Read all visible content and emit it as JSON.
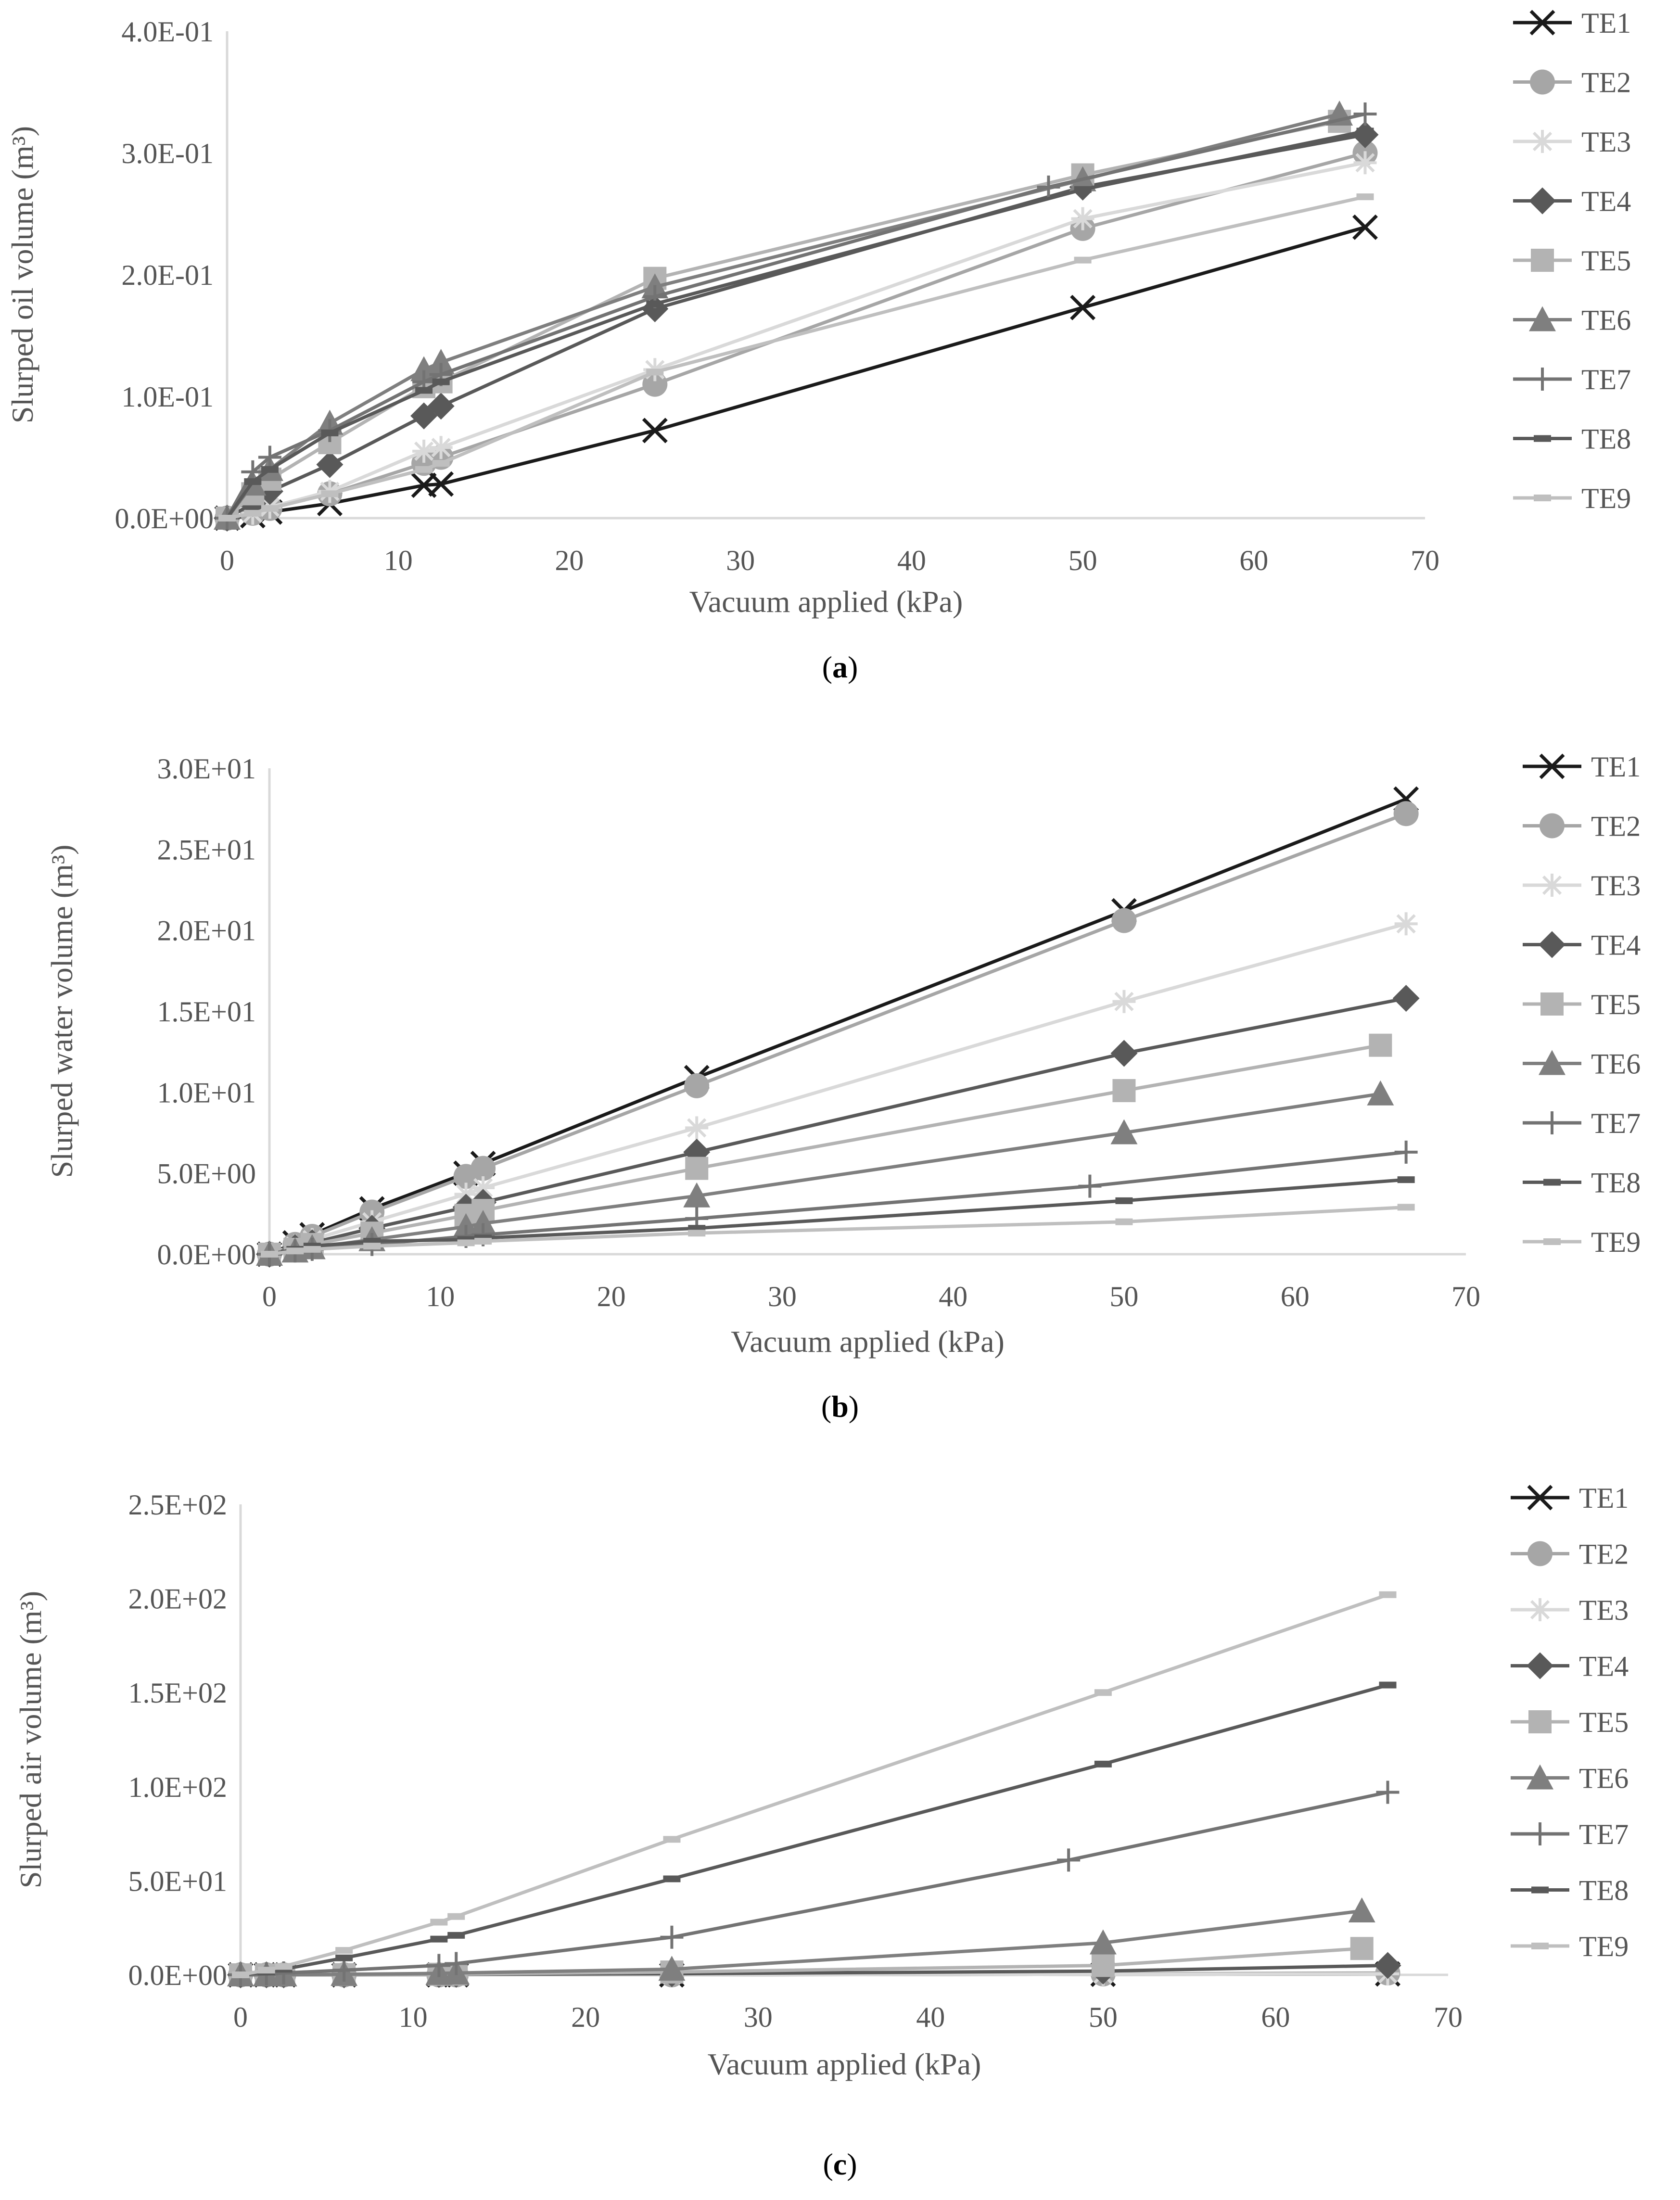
{
  "legend_entries": [
    "TE1",
    "TE2",
    "TE3",
    "TE4",
    "TE5",
    "TE6",
    "TE7",
    "TE8",
    "TE9"
  ],
  "series_style": [
    {
      "name": "TE1",
      "color": "#1a1a1a",
      "marker": "x"
    },
    {
      "name": "TE2",
      "color": "#a6a6a6",
      "marker": "circle"
    },
    {
      "name": "TE3",
      "color": "#d9d9d9",
      "marker": "asterisk"
    },
    {
      "name": "TE4",
      "color": "#595959",
      "marker": "diamond"
    },
    {
      "name": "TE5",
      "color": "#b3b3b3",
      "marker": "square"
    },
    {
      "name": "TE6",
      "color": "#7f7f7f",
      "marker": "triangle"
    },
    {
      "name": "TE7",
      "color": "#737373",
      "marker": "plus"
    },
    {
      "name": "TE8",
      "color": "#595959",
      "marker": "dash"
    },
    {
      "name": "TE9",
      "color": "#bfbfbf",
      "marker": "dash"
    }
  ],
  "chart_data": [
    {
      "type": "line",
      "caption": "a",
      "xlabel": "Vacuum applied (kPa)",
      "ylabel": "Slurped oil volume (m³)",
      "xlim": [
        0,
        70
      ],
      "ylim": [
        0,
        0.4
      ],
      "xticks": [
        0,
        10,
        20,
        30,
        40,
        50,
        60,
        70
      ],
      "xtick_labels": [
        "0",
        "10",
        "20",
        "30",
        "40",
        "50",
        "60",
        "70"
      ],
      "yticks": [
        0,
        0.1,
        0.2,
        0.3,
        0.4
      ],
      "ytick_labels": [
        "0.0E+00",
        "1.0E-01",
        "2.0E-01",
        "3.0E-01",
        "4.0E-01"
      ],
      "series": [
        {
          "name": "TE1",
          "x": [
            0,
            1.5,
            2.5,
            6,
            11.5,
            12.5,
            25,
            50,
            66.5
          ],
          "y": [
            0,
            0.002,
            0.005,
            0.012,
            0.027,
            0.028,
            0.072,
            0.173,
            0.239
          ]
        },
        {
          "name": "TE2",
          "x": [
            0,
            1.5,
            2.5,
            6,
            11.5,
            12.5,
            25,
            50,
            66.5
          ],
          "y": [
            0,
            0.004,
            0.008,
            0.02,
            0.045,
            0.05,
            0.11,
            0.238,
            0.3
          ]
        },
        {
          "name": "TE3",
          "x": [
            0,
            1.5,
            2.5,
            6,
            11.5,
            12.5,
            25,
            50,
            66.5
          ],
          "y": [
            0,
            0.004,
            0.009,
            0.022,
            0.055,
            0.058,
            0.122,
            0.246,
            0.292
          ]
        },
        {
          "name": "TE4",
          "x": [
            0,
            1.5,
            2.5,
            6,
            11.5,
            12.5,
            25,
            50,
            66.5
          ],
          "y": [
            0,
            0.012,
            0.022,
            0.044,
            0.084,
            0.092,
            0.172,
            0.272,
            0.315
          ]
        },
        {
          "name": "TE5",
          "x": [
            0,
            1.5,
            2.5,
            6,
            11.5,
            12.5,
            25,
            50,
            65
          ],
          "y": [
            0,
            0.02,
            0.032,
            0.062,
            0.108,
            0.112,
            0.197,
            0.282,
            0.326
          ]
        },
        {
          "name": "TE6",
          "x": [
            0,
            1.5,
            2.5,
            6,
            11.5,
            12.5,
            25,
            50,
            65
          ],
          "y": [
            0,
            0.028,
            0.04,
            0.078,
            0.122,
            0.128,
            0.19,
            0.278,
            0.332
          ]
        },
        {
          "name": "TE7",
          "x": [
            0,
            1.5,
            2.5,
            6,
            11.5,
            12.5,
            25,
            48,
            66.5
          ],
          "y": [
            0,
            0.038,
            0.05,
            0.072,
            0.112,
            0.118,
            0.182,
            0.272,
            0.332
          ]
        },
        {
          "name": "TE8",
          "x": [
            0,
            1.5,
            2.5,
            6,
            11.5,
            12.5,
            25,
            50,
            66.5
          ],
          "y": [
            0,
            0.03,
            0.04,
            0.07,
            0.105,
            0.112,
            0.176,
            0.27,
            0.318
          ]
        },
        {
          "name": "TE9",
          "x": [
            0,
            1.5,
            2.5,
            6,
            11.5,
            12.5,
            25,
            50,
            66.5
          ],
          "y": [
            0,
            0.004,
            0.008,
            0.02,
            0.04,
            0.045,
            0.12,
            0.212,
            0.264
          ]
        }
      ]
    },
    {
      "type": "line",
      "caption": "b",
      "xlabel": "Vacuum applied (kPa)",
      "ylabel": "Slurped water volume (m³)",
      "xlim": [
        0,
        70
      ],
      "ylim": [
        0,
        30
      ],
      "xticks": [
        0,
        10,
        20,
        30,
        40,
        50,
        60,
        70
      ],
      "xtick_labels": [
        "0",
        "10",
        "20",
        "30",
        "40",
        "50",
        "60",
        "70"
      ],
      "yticks": [
        0,
        5,
        10,
        15,
        20,
        25,
        30
      ],
      "ytick_labels": [
        "0.0E+00",
        "5.0E+00",
        "1.0E+01",
        "1.5E+01",
        "2.0E+01",
        "2.5E+01",
        "3.0E+01"
      ],
      "series": [
        {
          "name": "TE1",
          "x": [
            0,
            1.5,
            2.5,
            6,
            11.5,
            12.5,
            25,
            50,
            66.5
          ],
          "y": [
            0,
            0.7,
            1.2,
            2.8,
            5.0,
            5.6,
            10.9,
            21.2,
            28.1
          ]
        },
        {
          "name": "TE2",
          "x": [
            0,
            1.5,
            2.5,
            6,
            11.5,
            12.5,
            25,
            50,
            66.5
          ],
          "y": [
            0,
            0.6,
            1.1,
            2.6,
            4.8,
            5.3,
            10.4,
            20.6,
            27.2
          ]
        },
        {
          "name": "TE3",
          "x": [
            0,
            1.5,
            2.5,
            6,
            11.5,
            12.5,
            25,
            50,
            66.5
          ],
          "y": [
            0,
            0.5,
            0.9,
            2.0,
            3.7,
            4.1,
            7.8,
            15.6,
            20.4
          ]
        },
        {
          "name": "TE4",
          "x": [
            0,
            1.5,
            2.5,
            6,
            11.5,
            12.5,
            25,
            50,
            66.5
          ],
          "y": [
            0,
            0.4,
            0.7,
            1.6,
            2.9,
            3.2,
            6.3,
            12.4,
            15.8
          ]
        },
        {
          "name": "TE5",
          "x": [
            0,
            1.5,
            2.5,
            6,
            11.5,
            12.5,
            25,
            50,
            65
          ],
          "y": [
            0,
            0.3,
            0.6,
            1.3,
            2.4,
            2.7,
            5.3,
            10.1,
            12.9
          ]
        },
        {
          "name": "TE6",
          "x": [
            0,
            1.5,
            2.5,
            6,
            11.5,
            12.5,
            25,
            50,
            65
          ],
          "y": [
            0,
            0.2,
            0.4,
            0.9,
            1.7,
            1.9,
            3.6,
            7.5,
            9.9
          ]
        },
        {
          "name": "TE7",
          "x": [
            0,
            1.5,
            2.5,
            6,
            11.5,
            12.5,
            25,
            48,
            66.5
          ],
          "y": [
            0,
            0.2,
            0.3,
            0.6,
            1.1,
            1.2,
            2.2,
            4.2,
            6.3
          ]
        },
        {
          "name": "TE8",
          "x": [
            0,
            1.5,
            2.5,
            6,
            11.5,
            12.5,
            25,
            50,
            66.5
          ],
          "y": [
            0,
            0.3,
            0.5,
            0.8,
            0.9,
            1.0,
            1.6,
            3.3,
            4.6
          ]
        },
        {
          "name": "TE9",
          "x": [
            0,
            1.5,
            2.5,
            6,
            11.5,
            12.5,
            25,
            50,
            66.5
          ],
          "y": [
            0,
            0.2,
            0.3,
            0.5,
            0.7,
            0.8,
            1.3,
            2.0,
            2.9
          ]
        }
      ]
    },
    {
      "type": "line",
      "caption": "c",
      "xlabel": "Vacuum applied (kPa)",
      "ylabel": "Slurped air volume (m³)",
      "xlim": [
        0,
        70
      ],
      "ylim": [
        0,
        250
      ],
      "xticks": [
        0,
        10,
        20,
        30,
        40,
        50,
        60,
        70
      ],
      "xtick_labels": [
        "0",
        "10",
        "20",
        "30",
        "40",
        "50",
        "60",
        "70"
      ],
      "yticks": [
        0,
        50,
        100,
        150,
        200,
        250
      ],
      "ytick_labels": [
        "0.0E+00",
        "5.0E+01",
        "1.0E+02",
        "1.5E+02",
        "2.0E+02",
        "2.5E+02"
      ],
      "series": [
        {
          "name": "TE1",
          "x": [
            0,
            1.5,
            2.5,
            6,
            11.5,
            12.5,
            25,
            50,
            66.5
          ],
          "y": [
            0,
            0,
            0,
            0,
            0,
            0,
            0,
            0.3,
            0.5
          ]
        },
        {
          "name": "TE2",
          "x": [
            0,
            1.5,
            2.5,
            6,
            11.5,
            12.5,
            25,
            50,
            66.5
          ],
          "y": [
            0,
            0,
            0,
            0,
            0,
            0,
            0,
            0.5,
            1
          ]
        },
        {
          "name": "TE3",
          "x": [
            0,
            1.5,
            2.5,
            6,
            11.5,
            12.5,
            25,
            50,
            66.5
          ],
          "y": [
            0,
            0,
            0,
            0,
            0,
            0,
            0,
            0.3,
            0.5
          ]
        },
        {
          "name": "TE4",
          "x": [
            0,
            1.5,
            2.5,
            6,
            11.5,
            12.5,
            25,
            50,
            66.5
          ],
          "y": [
            0,
            0,
            0,
            0,
            0.2,
            0.3,
            0.6,
            2,
            5
          ]
        },
        {
          "name": "TE5",
          "x": [
            0,
            1.5,
            2.5,
            6,
            11.5,
            12.5,
            25,
            50,
            65
          ],
          "y": [
            0,
            0,
            0,
            0.1,
            0.3,
            0.4,
            1.5,
            5,
            14
          ]
        },
        {
          "name": "TE6",
          "x": [
            0,
            1.5,
            2.5,
            6,
            11.5,
            12.5,
            25,
            50,
            65
          ],
          "y": [
            0,
            0,
            0,
            0.3,
            0.8,
            1,
            3,
            17,
            34
          ]
        },
        {
          "name": "TE7",
          "x": [
            0,
            1.5,
            2.5,
            6,
            11.5,
            12.5,
            25,
            48,
            66.5
          ],
          "y": [
            0,
            0.5,
            1,
            2.5,
            5,
            6,
            20,
            61,
            97
          ]
        },
        {
          "name": "TE8",
          "x": [
            0,
            1.5,
            2.5,
            6,
            11.5,
            12.5,
            25,
            50,
            66.5
          ],
          "y": [
            0,
            1.5,
            3,
            9,
            19,
            21,
            51,
            112,
            154
          ]
        },
        {
          "name": "TE9",
          "x": [
            0,
            1.5,
            2.5,
            6,
            11.5,
            12.5,
            25,
            50,
            66.5
          ],
          "y": [
            0,
            2.5,
            4.5,
            13,
            28,
            31,
            72,
            150,
            202
          ]
        }
      ]
    }
  ]
}
